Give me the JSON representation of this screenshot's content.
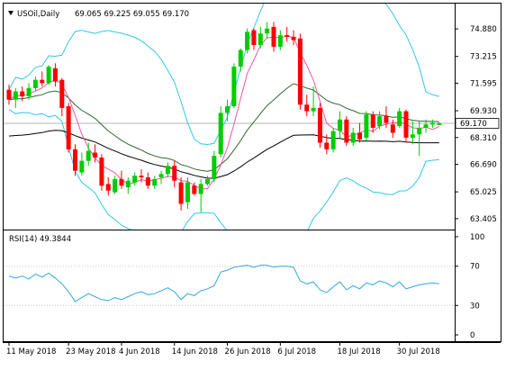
{
  "header": {
    "symbol": "USOil,Daily",
    "ohlc": "69.065 69.225 69.055 69.170",
    "dropdown_icon": "triangle-down-icon"
  },
  "rsi_label": "RSI(14) 49.3844",
  "colors": {
    "up": "#00cc00",
    "down": "#ff0000",
    "bb": "#33c5e6",
    "ma_fast": "#ee55a5",
    "ma_mid": "#2e6a2e",
    "ma_slow": "#000000",
    "rsi": "#2ea8e0",
    "grid": "#c8c8c8",
    "price_line": "#b4b4b4",
    "price_tag_bg": "#ffffff",
    "frame": "#000000"
  },
  "chart_data": [
    {
      "type": "candlestick",
      "title": "USOil,Daily",
      "ylim": [
        62.8,
        76.3
      ],
      "y_ticks": [
        "74.880",
        "73.215",
        "71.595",
        "69.930",
        "68.310",
        "66.690",
        "65.025",
        "63.405"
      ],
      "y_tick_values": [
        74.88,
        73.215,
        71.595,
        69.93,
        68.31,
        66.69,
        65.025,
        63.405
      ],
      "current_price": 69.17,
      "current_price_label": "69.170",
      "x_labels": [
        "11 May 2018",
        "23 May 2018",
        "4 Jun 2018",
        "14 Jun 2018",
        "26 Jun 2018",
        "6 Jul 2018",
        "18 Jul 2018",
        "30 Jul 2018"
      ],
      "x_label_index": [
        0,
        9,
        17,
        25,
        33,
        41,
        50,
        59
      ],
      "candles": [
        [
          71.2,
          71.5,
          70.3,
          70.6
        ],
        [
          70.6,
          71.3,
          70.1,
          71.1
        ],
        [
          71.1,
          71.4,
          70.5,
          70.8
        ],
        [
          70.8,
          71.6,
          70.6,
          71.3
        ],
        [
          71.3,
          72.0,
          71.1,
          71.8
        ],
        [
          71.8,
          72.3,
          71.4,
          71.6
        ],
        [
          71.6,
          72.7,
          71.5,
          72.6
        ],
        [
          72.5,
          72.8,
          71.4,
          71.7
        ],
        [
          71.8,
          71.9,
          69.6,
          70.1
        ],
        [
          70.2,
          70.4,
          67.4,
          67.6
        ],
        [
          67.6,
          67.9,
          66.0,
          66.3
        ],
        [
          66.2,
          67.4,
          66.0,
          66.9
        ],
        [
          66.9,
          68.0,
          66.6,
          67.5
        ],
        [
          67.4,
          67.9,
          66.8,
          67.1
        ],
        [
          67.1,
          67.3,
          65.1,
          65.4
        ],
        [
          65.5,
          65.9,
          64.8,
          65.1
        ],
        [
          65.0,
          66.0,
          64.9,
          65.8
        ],
        [
          65.8,
          66.3,
          65.2,
          65.4
        ],
        [
          65.3,
          65.9,
          64.9,
          65.7
        ],
        [
          65.6,
          66.2,
          65.4,
          66.0
        ],
        [
          66.0,
          66.4,
          65.6,
          65.9
        ],
        [
          65.9,
          66.2,
          65.2,
          65.4
        ],
        [
          65.4,
          66.0,
          65.2,
          65.8
        ],
        [
          65.9,
          66.3,
          65.5,
          66.1
        ],
        [
          66.1,
          66.8,
          65.9,
          66.6
        ],
        [
          66.6,
          66.9,
          65.3,
          65.7
        ],
        [
          65.6,
          65.9,
          63.9,
          64.3
        ],
        [
          64.4,
          65.9,
          64.0,
          65.6
        ],
        [
          65.4,
          65.6,
          64.8,
          64.9
        ],
        [
          64.9,
          65.8,
          63.8,
          65.5
        ],
        [
          65.5,
          66.0,
          65.4,
          65.8
        ],
        [
          65.8,
          67.5,
          65.6,
          67.2
        ],
        [
          67.3,
          70.2,
          67.1,
          69.8
        ],
        [
          69.8,
          70.6,
          69.3,
          70.2
        ],
        [
          70.2,
          72.8,
          70.1,
          72.6
        ],
        [
          72.6,
          73.7,
          72.3,
          73.6
        ],
        [
          73.6,
          74.9,
          73.4,
          74.7
        ],
        [
          74.8,
          74.9,
          73.6,
          73.9
        ],
        [
          73.9,
          75.0,
          73.7,
          74.6
        ],
        [
          74.6,
          75.3,
          74.3,
          74.9
        ],
        [
          75.0,
          75.3,
          73.5,
          73.8
        ],
        [
          73.8,
          74.8,
          73.6,
          74.5
        ],
        [
          74.5,
          75.0,
          74.1,
          74.4
        ],
        [
          74.4,
          74.8,
          73.9,
          74.2
        ],
        [
          74.3,
          74.6,
          70.0,
          70.3
        ],
        [
          70.3,
          70.9,
          69.6,
          69.9
        ],
        [
          69.9,
          71.4,
          69.6,
          70.1
        ],
        [
          70.1,
          70.4,
          67.7,
          68.0
        ],
        [
          68.0,
          68.5,
          67.3,
          67.6
        ],
        [
          67.6,
          68.9,
          67.4,
          68.7
        ],
        [
          68.7,
          69.9,
          68.3,
          69.4
        ],
        [
          69.4,
          69.6,
          67.8,
          68.0
        ],
        [
          68.0,
          68.9,
          67.8,
          68.6
        ],
        [
          68.6,
          69.2,
          68.0,
          68.2
        ],
        [
          68.3,
          69.9,
          68.1,
          69.7
        ],
        [
          69.7,
          69.9,
          68.6,
          68.9
        ],
        [
          69.0,
          69.9,
          68.8,
          69.6
        ],
        [
          69.6,
          70.2,
          68.9,
          69.2
        ],
        [
          69.1,
          69.4,
          68.3,
          68.6
        ],
        [
          69.0,
          70.1,
          68.9,
          69.9
        ],
        [
          69.9,
          70.0,
          68.0,
          68.3
        ],
        [
          68.3,
          69.3,
          67.9,
          68.5
        ],
        [
          68.5,
          69.3,
          67.2,
          68.9
        ],
        [
          68.9,
          69.4,
          68.6,
          69.1
        ],
        [
          69.1,
          69.4,
          68.9,
          69.2
        ],
        [
          69.065,
          69.225,
          69.055,
          69.17
        ]
      ]
    },
    {
      "type": "line",
      "title": "RSI(14) 49.3844",
      "ylim": [
        0,
        100
      ],
      "y_ticks": [
        "100",
        "70",
        "30",
        "0"
      ],
      "y_tick_values": [
        100,
        70,
        30,
        0
      ],
      "gridlines": [
        70,
        30
      ],
      "values": [
        60,
        58,
        60,
        57,
        62,
        59,
        63,
        58,
        52,
        44,
        34,
        38,
        42,
        39,
        36,
        35,
        38,
        36,
        39,
        42,
        44,
        41,
        42,
        45,
        48,
        44,
        36,
        42,
        40,
        45,
        47,
        50,
        64,
        66,
        69,
        70,
        71,
        69,
        71,
        71,
        69,
        70,
        70,
        69,
        55,
        52,
        54,
        46,
        43,
        49,
        54,
        46,
        50,
        47,
        53,
        51,
        55,
        53,
        49,
        54,
        47,
        49,
        51,
        52,
        53,
        52
      ]
    }
  ]
}
